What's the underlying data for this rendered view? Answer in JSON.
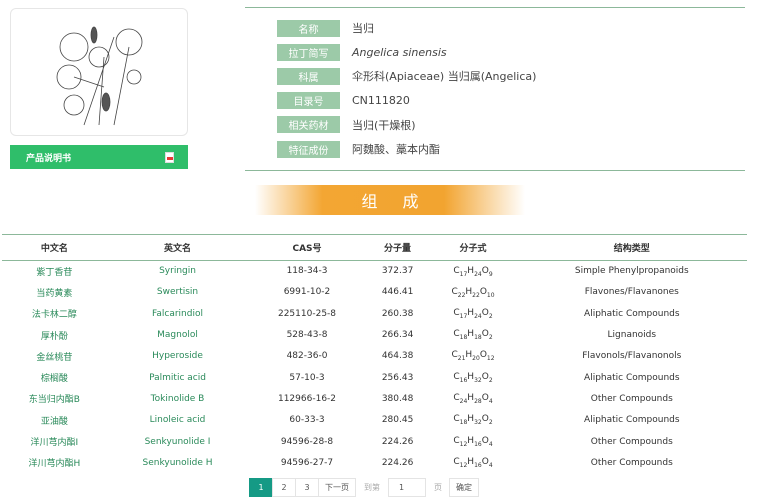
{
  "product": {
    "manual_label": "产品说明书",
    "image_alt": "plant-illustration"
  },
  "info": [
    {
      "label": "名称",
      "value": "当归"
    },
    {
      "label": "拉丁简写",
      "value": "Angelica sinensis"
    },
    {
      "label": "科属",
      "value": "伞形科(Apiaceae) 当归属(Angelica)"
    },
    {
      "label": "目录号",
      "value": "CN111820"
    },
    {
      "label": "相关药材",
      "value": "当归(干燥根)"
    },
    {
      "label": "特征成份",
      "value": "阿魏酸、藁本内酯"
    }
  ],
  "section_title": "组 成",
  "table": {
    "headers": [
      "中文名",
      "英文名",
      "CAS号",
      "分子量",
      "分子式",
      "结构类型"
    ],
    "rows": [
      {
        "cn": "紫丁香苷",
        "en": "Syringin",
        "cas": "118-34-3",
        "mw": "372.37",
        "formula": [
          [
            "C",
            "17"
          ],
          [
            "H",
            "24"
          ],
          [
            "O",
            "9"
          ]
        ],
        "type": "Simple Phenylpropanoids"
      },
      {
        "cn": "当药黄素",
        "en": "Swertisin",
        "cas": "6991-10-2",
        "mw": "446.41",
        "formula": [
          [
            "C",
            "22"
          ],
          [
            "H",
            "22"
          ],
          [
            "O",
            "10"
          ]
        ],
        "type": "Flavones/Flavanones"
      },
      {
        "cn": "法卡林二醇",
        "en": "Falcarindiol",
        "cas": "225110-25-8",
        "mw": "260.38",
        "formula": [
          [
            "C",
            "17"
          ],
          [
            "H",
            "24"
          ],
          [
            "O",
            "2"
          ]
        ],
        "type": "Aliphatic Compounds"
      },
      {
        "cn": "厚朴酚",
        "en": "Magnolol",
        "cas": "528-43-8",
        "mw": "266.34",
        "formula": [
          [
            "C",
            "18"
          ],
          [
            "H",
            "18"
          ],
          [
            "O",
            "2"
          ]
        ],
        "type": "Lignanoids"
      },
      {
        "cn": "金丝桃苷",
        "en": "Hyperoside",
        "cas": "482-36-0",
        "mw": "464.38",
        "formula": [
          [
            "C",
            "21"
          ],
          [
            "H",
            "20"
          ],
          [
            "O",
            "12"
          ]
        ],
        "type": "Flavonols/Flavanonols"
      },
      {
        "cn": "棕榈酸",
        "en": "Palmitic acid",
        "cas": "57-10-3",
        "mw": "256.43",
        "formula": [
          [
            "C",
            "16"
          ],
          [
            "H",
            "32"
          ],
          [
            "O",
            "2"
          ]
        ],
        "type": "Aliphatic Compounds"
      },
      {
        "cn": "东当归内酯B",
        "en": "Tokinolide B",
        "cas": "112966-16-2",
        "mw": "380.48",
        "formula": [
          [
            "C",
            "24"
          ],
          [
            "H",
            "28"
          ],
          [
            "O",
            "4"
          ]
        ],
        "type": "Other Compounds"
      },
      {
        "cn": "亚油酸",
        "en": "Linoleic acid",
        "cas": "60-33-3",
        "mw": "280.45",
        "formula": [
          [
            "C",
            "18"
          ],
          [
            "H",
            "32"
          ],
          [
            "O",
            "2"
          ]
        ],
        "type": "Aliphatic Compounds"
      },
      {
        "cn": "洋川芎内酯I",
        "en": "Senkyunolide I",
        "cas": "94596-28-8",
        "mw": "224.26",
        "formula": [
          [
            "C",
            "12"
          ],
          [
            "H",
            "16"
          ],
          [
            "O",
            "4"
          ]
        ],
        "type": "Other Compounds"
      },
      {
        "cn": "洋川芎内酯H",
        "en": "Senkyunolide H",
        "cas": "94596-27-7",
        "mw": "224.26",
        "formula": [
          [
            "C",
            "12"
          ],
          [
            "H",
            "16"
          ],
          [
            "O",
            "4"
          ]
        ],
        "type": "Other Compounds"
      }
    ]
  },
  "pager": {
    "pages": [
      "1",
      "2",
      "3"
    ],
    "current": "1",
    "next": "下一页",
    "goto_prefix": "到第",
    "goto_value": "1",
    "goto_suffix": "页",
    "confirm": "确定"
  },
  "colors": {
    "green": "#2fbe6a",
    "label_bg": "#9ccaa8",
    "accent_orange": "#f3a633",
    "pager_active": "#159a85"
  }
}
